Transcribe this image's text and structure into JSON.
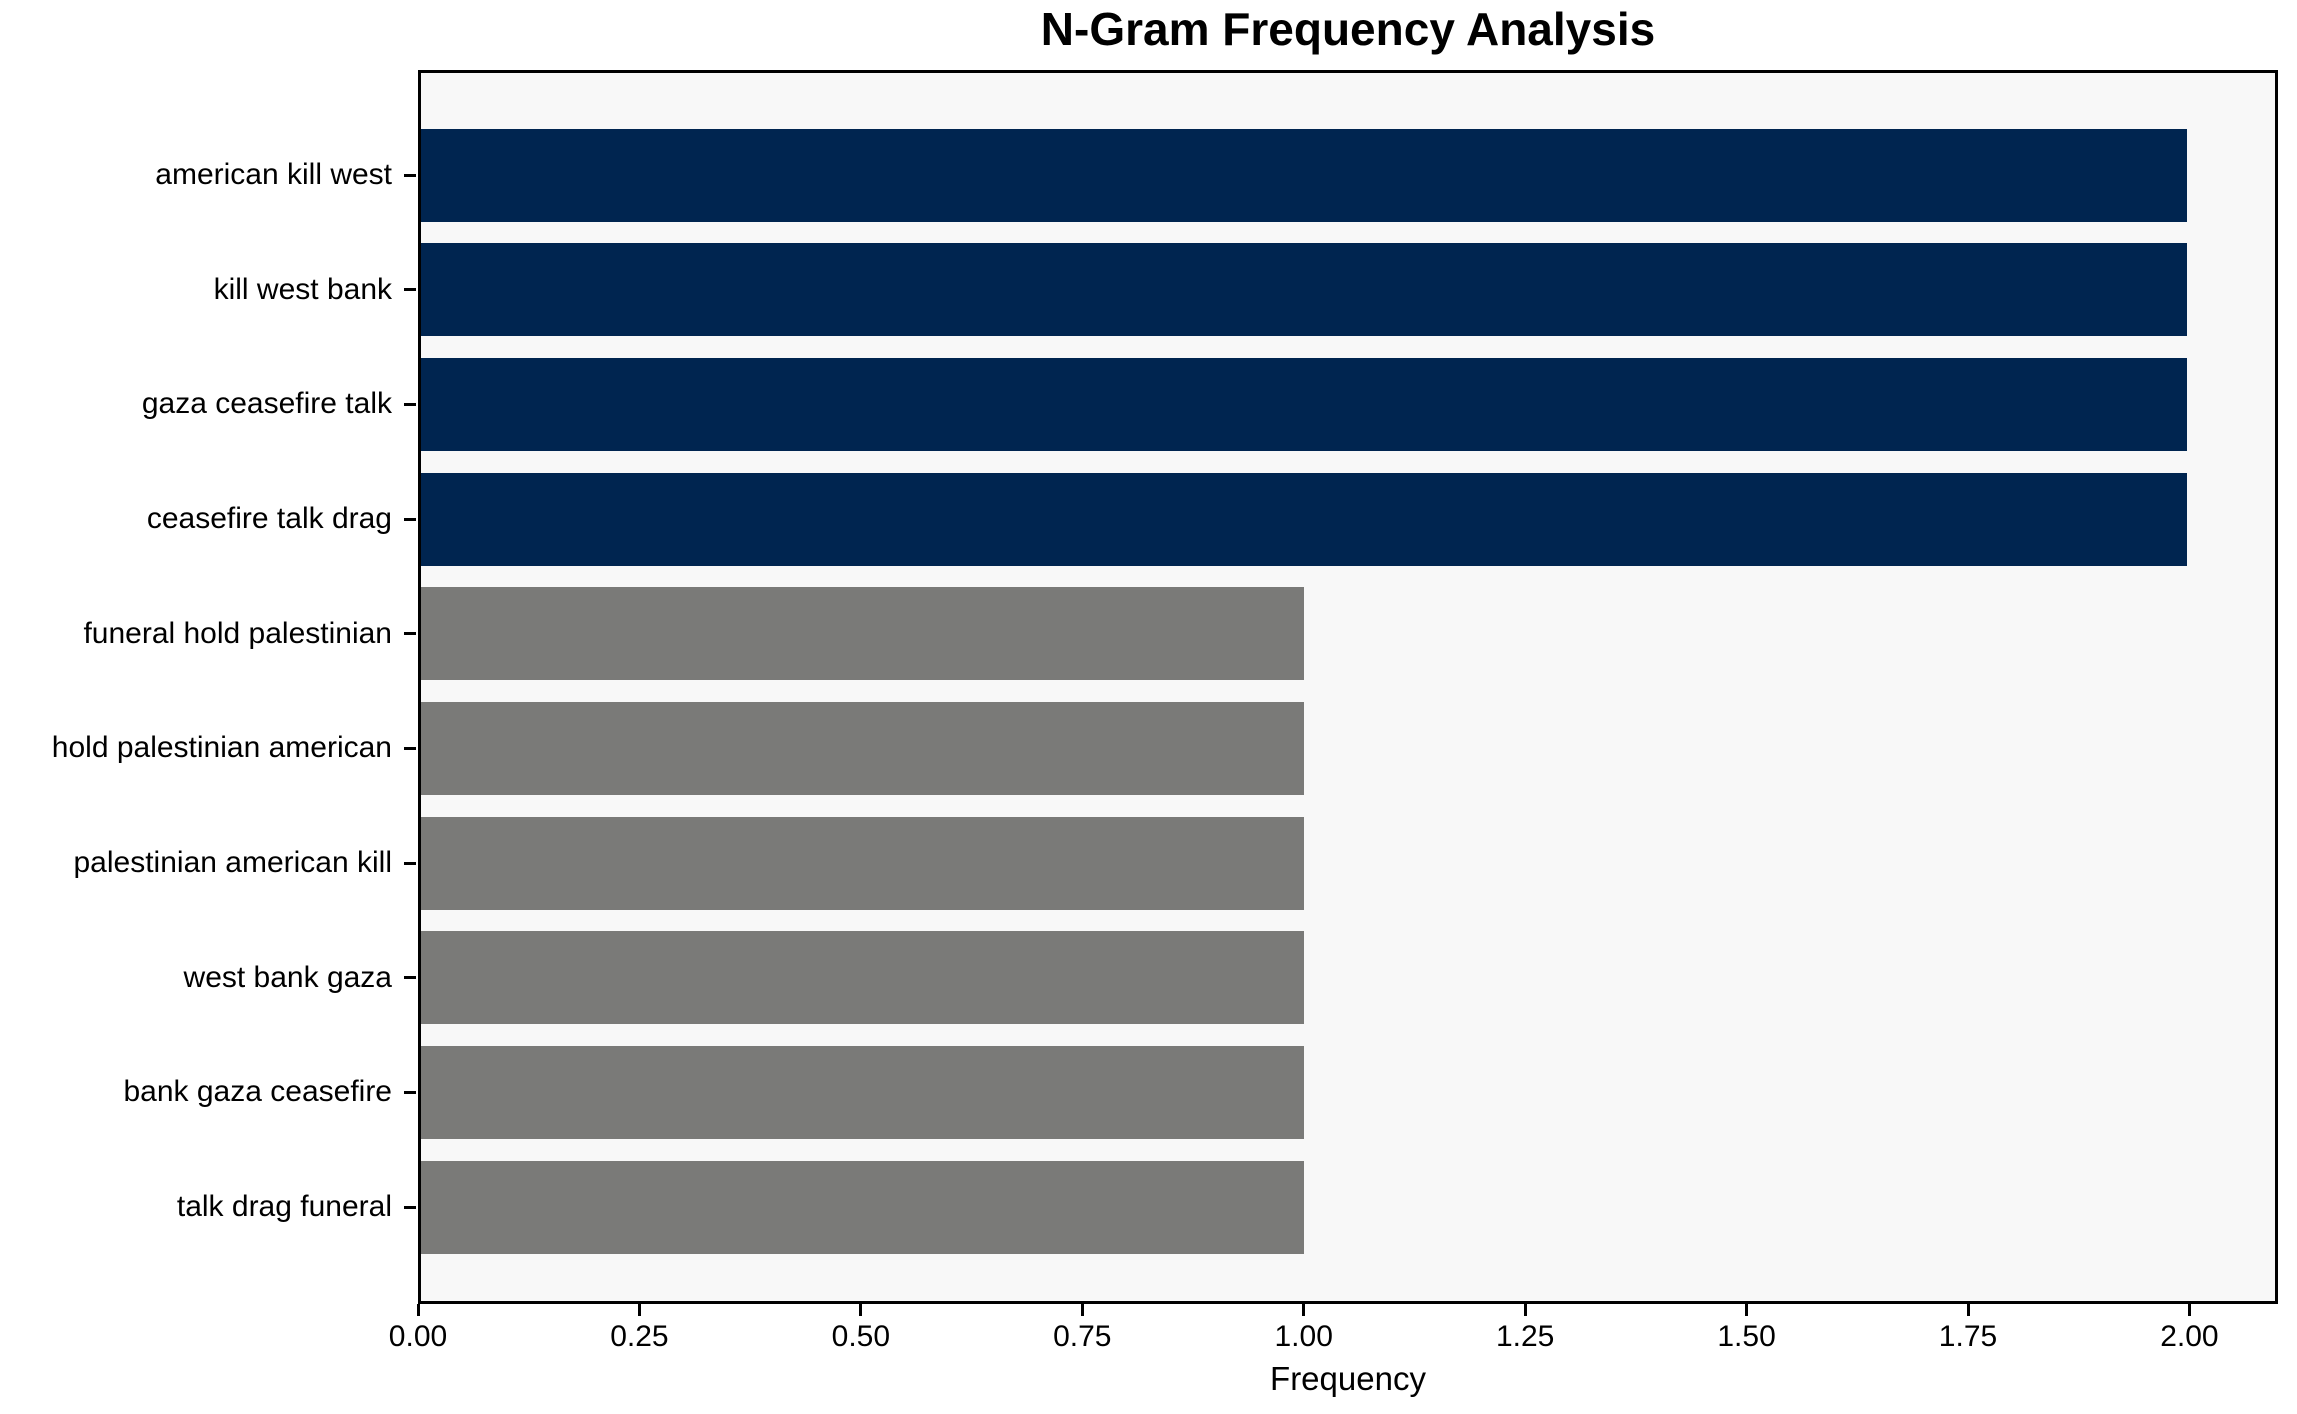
{
  "chart_data": {
    "type": "bar",
    "orientation": "horizontal",
    "title": "N-Gram Frequency Analysis",
    "xlabel": "Frequency",
    "ylabel": "",
    "categories": [
      "american kill west",
      "kill west bank",
      "gaza ceasefire talk",
      "ceasefire talk drag",
      "funeral hold palestinian",
      "hold palestinian american",
      "palestinian american kill",
      "west bank gaza",
      "bank gaza ceasefire",
      "talk drag funeral"
    ],
    "values": [
      2,
      2,
      2,
      2,
      1,
      1,
      1,
      1,
      1,
      1
    ],
    "bar_colors": [
      "#002550",
      "#002550",
      "#002550",
      "#002550",
      "#7a7a78",
      "#7a7a78",
      "#7a7a78",
      "#7a7a78",
      "#7a7a78",
      "#7a7a78"
    ],
    "xlim": [
      0,
      2.1
    ],
    "xticks": [
      "0.00",
      "0.25",
      "0.50",
      "0.75",
      "1.00",
      "1.25",
      "1.50",
      "1.75",
      "2.00"
    ],
    "xtick_values": [
      0,
      0.25,
      0.5,
      0.75,
      1.0,
      1.25,
      1.5,
      1.75,
      2.0
    ],
    "grid": false,
    "legend": false,
    "plot_bg": "#f8f8f8",
    "figure_bg": "#ffffff",
    "spine_color": "#000000"
  }
}
